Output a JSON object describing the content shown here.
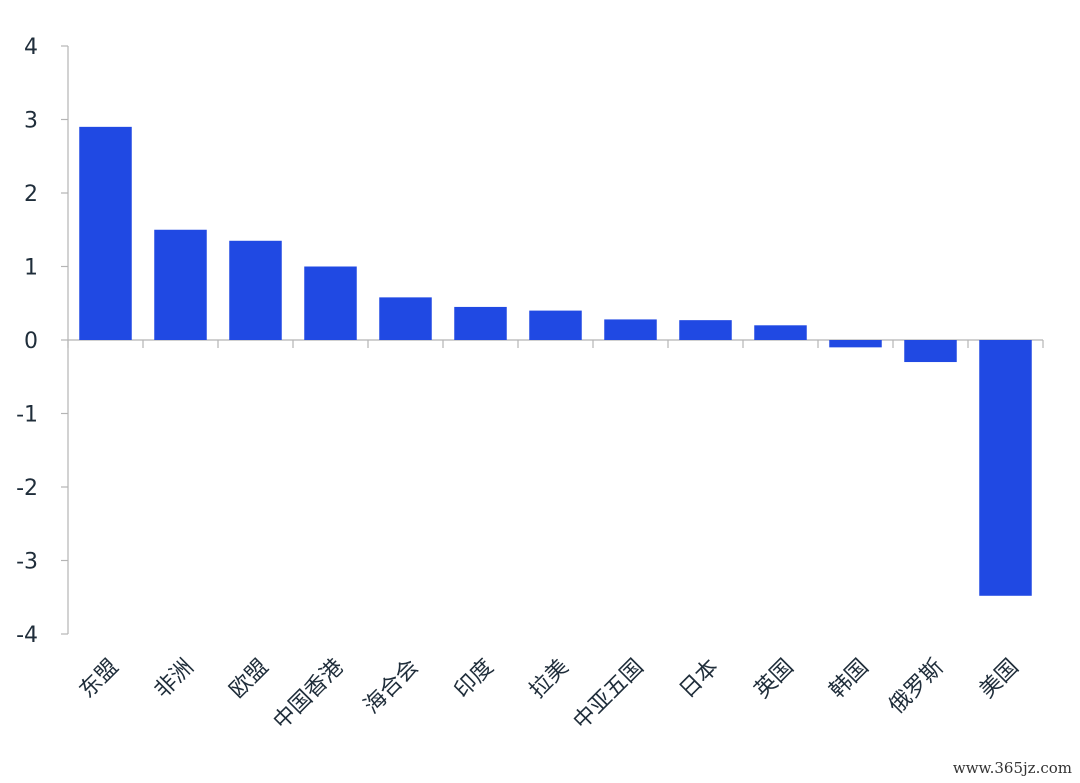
{
  "chart_data": {
    "type": "bar",
    "categories": [
      "东盟",
      "非洲",
      "欧盟",
      "中国香港",
      "海合会",
      "印度",
      "拉美",
      "中亚五国",
      "日本",
      "英国",
      "韩国",
      "俄罗斯",
      "美国"
    ],
    "values": [
      2.9,
      1.5,
      1.35,
      1.0,
      0.58,
      0.45,
      0.4,
      0.28,
      0.27,
      0.2,
      -0.1,
      -0.3,
      -3.48
    ],
    "ylim": [
      -4,
      4
    ],
    "yticks": [
      4,
      3,
      2,
      1,
      0,
      -1,
      -2,
      -3,
      -4
    ],
    "bar_color": "#2049e3",
    "axis_color": "#b5b5b5",
    "grid": false,
    "legend": "none"
  },
  "watermark": "www.365jz.com"
}
